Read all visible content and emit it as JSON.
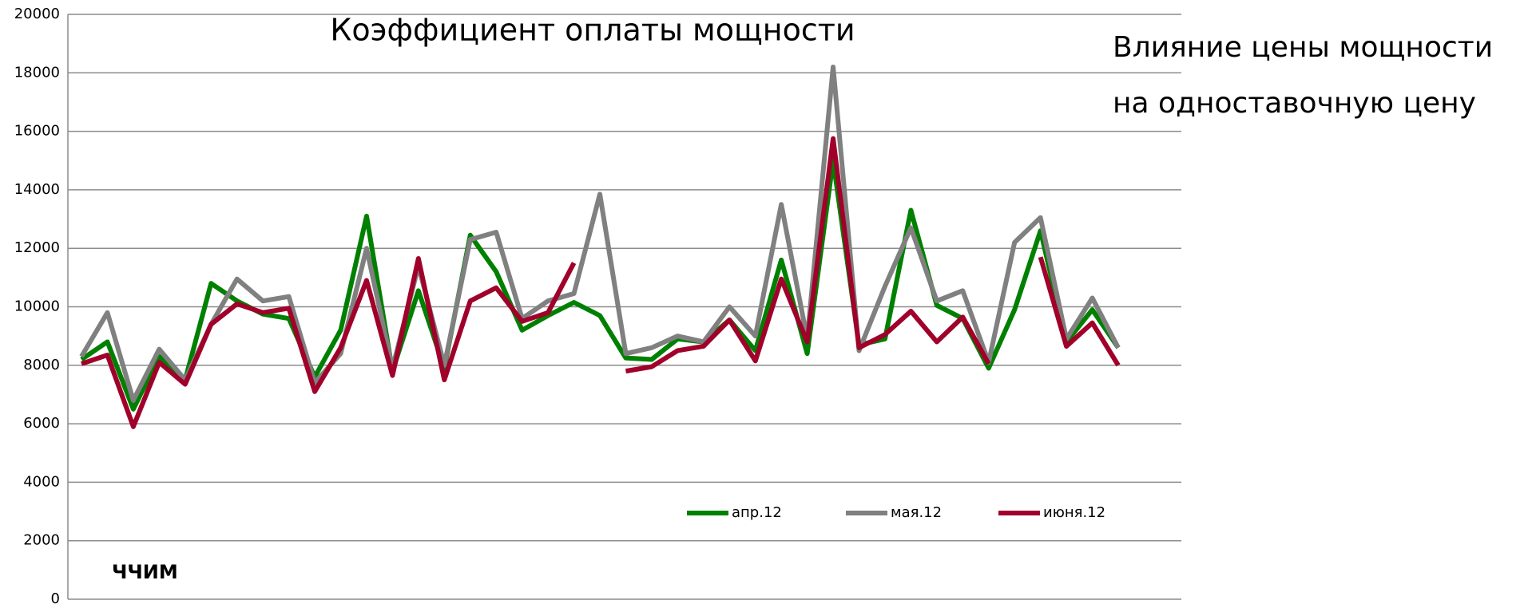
{
  "chart_data": {
    "type": "line",
    "title": "Коэффициент оплаты мощности",
    "annotations": [
      "Влияние цены мощности",
      "на одноставочную цену",
      "ЧЧИМ"
    ],
    "categories": [
      null,
      null,
      null,
      null,
      null,
      null,
      null,
      null,
      null,
      null,
      null,
      null,
      null,
      null,
      null,
      null,
      null,
      null,
      null,
      null,
      null,
      null,
      null,
      null,
      null,
      null,
      null,
      null,
      null,
      null,
      null,
      null,
      null,
      null,
      null,
      null,
      null,
      null,
      null,
      null,
      null
    ],
    "series": [
      {
        "name": "апр.12",
        "color": "#008000",
        "values": [
          8200,
          8800,
          6500,
          8300,
          7500,
          10800,
          10200,
          9750,
          9600,
          7600,
          9200,
          13100,
          7800,
          10550,
          7900,
          12450,
          11200,
          9200,
          9700,
          10150,
          9700,
          8250,
          8200,
          8900,
          8800,
          9550,
          8500,
          11600,
          8400,
          15000,
          8700,
          8900,
          13300,
          10050,
          9600,
          7900,
          9900,
          12600,
          8800,
          9900,
          8600
        ]
      },
      {
        "name": "мая.12",
        "color": "#808080",
        "values": [
          8300,
          9800,
          6800,
          8550,
          7500,
          9400,
          10950,
          10200,
          10350,
          7400,
          8400,
          12000,
          7900,
          11400,
          8000,
          12300,
          12550,
          9600,
          10200,
          10450,
          13850,
          8400,
          8600,
          9000,
          8800,
          10000,
          9000,
          13500,
          8900,
          18200,
          8500,
          10700,
          12700,
          10200,
          10550,
          8100,
          12200,
          13050,
          8900,
          10300,
          8600
        ]
      },
      {
        "name": "июня.12",
        "color": "#a0002a",
        "values": [
          8050,
          8350,
          5900,
          8100,
          7350,
          9400,
          10100,
          9800,
          9950,
          7100,
          8600,
          10900,
          7650,
          11650,
          7500,
          10200,
          10650,
          9500,
          9800,
          11500,
          null,
          7800,
          7950,
          8500,
          8650,
          9550,
          8150,
          10950,
          8800,
          15750,
          8600,
          9050,
          9850,
          8800,
          9650,
          8050,
          null,
          11700,
          8650,
          9450,
          8000
        ]
      }
    ],
    "ylim": [
      0,
      20000
    ],
    "yticks": [
      0,
      2000,
      4000,
      6000,
      8000,
      10000,
      12000,
      14000,
      16000,
      18000,
      20000
    ],
    "grid": true
  }
}
